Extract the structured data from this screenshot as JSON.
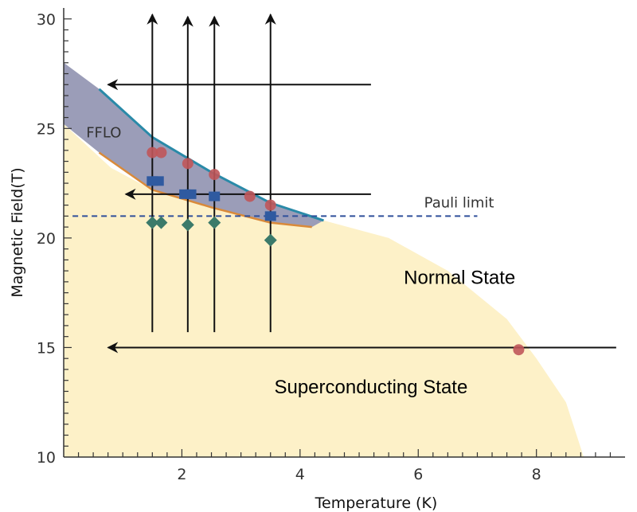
{
  "chart_data": {
    "type": "scatter",
    "title": "",
    "xlabel": "Temperature (K)",
    "ylabel": "Magnetic Field(T)",
    "xlim": [
      0,
      9.5
    ],
    "ylim": [
      10,
      30.5
    ],
    "x_ticks": [
      2,
      4,
      6,
      8
    ],
    "y_ticks": [
      10,
      15,
      20,
      25,
      30
    ],
    "x_tick_labels": [
      "2",
      "4",
      "6",
      "8"
    ],
    "y_tick_labels": [
      "10",
      "15",
      "20",
      "25",
      "30"
    ],
    "grid": false,
    "legend": "none",
    "regions": [
      {
        "label": "Superconducting State",
        "color": "#fdf1c8"
      },
      {
        "label": "FFLO",
        "color": "#9b9db8"
      }
    ],
    "boundaries": {
      "superconducting_upper": [
        [
          0,
          25.2
        ],
        [
          0.8,
          23.2
        ],
        [
          1.5,
          22.2
        ],
        [
          2.5,
          21.4
        ],
        [
          3.5,
          21.0
        ],
        [
          4.4,
          20.8
        ],
        [
          5.5,
          20.0
        ],
        [
          6.5,
          18.5
        ],
        [
          7.5,
          16.3
        ],
        [
          8.0,
          14.5
        ],
        [
          8.5,
          12.5
        ],
        [
          8.8,
          10.0
        ]
      ],
      "fflo_upper": [
        [
          0,
          28.0
        ],
        [
          0.6,
          26.8
        ],
        [
          1.5,
          24.6
        ],
        [
          2.5,
          23.0
        ],
        [
          3.5,
          21.6
        ],
        [
          4.4,
          20.8
        ]
      ],
      "fflo_lower": [
        [
          0.6,
          23.9
        ],
        [
          1.5,
          22.2
        ],
        [
          2.5,
          21.4
        ],
        [
          3.5,
          20.7
        ],
        [
          4.2,
          20.5
        ]
      ]
    },
    "pauli_limit": {
      "label": "Pauli limit",
      "y": 21.0,
      "x_range": [
        0.15,
        7.0
      ]
    },
    "series": [
      {
        "marker": "circle",
        "color": "#c0565a",
        "points": [
          [
            1.5,
            23.9
          ],
          [
            1.65,
            23.9
          ],
          [
            2.1,
            23.4
          ],
          [
            2.55,
            22.9
          ],
          [
            3.15,
            21.9
          ],
          [
            3.5,
            21.5
          ],
          [
            7.7,
            14.9
          ]
        ]
      },
      {
        "marker": "square",
        "color": "#2f5aa0",
        "points": [
          [
            1.5,
            22.6
          ],
          [
            1.6,
            22.6
          ],
          [
            2.05,
            22.0
          ],
          [
            2.15,
            22.0
          ],
          [
            2.55,
            21.9
          ],
          [
            3.5,
            21.0
          ]
        ]
      },
      {
        "marker": "diamond",
        "color": "#3b7a6a",
        "points": [
          [
            1.5,
            20.7
          ],
          [
            1.65,
            20.7
          ],
          [
            2.1,
            20.6
          ],
          [
            2.55,
            20.7
          ],
          [
            3.5,
            19.9
          ]
        ]
      }
    ],
    "vertical_arrows": [
      {
        "x": 1.5,
        "from": 15.7,
        "to": 30.2
      },
      {
        "x": 2.1,
        "from": 15.7,
        "to": 30.1
      },
      {
        "x": 2.55,
        "from": 15.7,
        "to": 30.1
      },
      {
        "x": 3.5,
        "from": 15.7,
        "to": 30.2
      }
    ],
    "horizontal_arrows": [
      {
        "y": 27.0,
        "from": 5.2,
        "to": 0.75
      },
      {
        "y": 22.0,
        "from": 5.2,
        "to": 1.05
      },
      {
        "y": 15.0,
        "from": 9.35,
        "to": 0.75
      }
    ],
    "annotations": [
      {
        "id": "fflo",
        "text": "FFLO",
        "x": 0.38,
        "y": 24.6,
        "style": "small"
      },
      {
        "id": "pauli",
        "text": "Pauli limit",
        "x": 6.1,
        "y": 21.4,
        "style": "small"
      },
      {
        "id": "normal",
        "text": "Normal State",
        "x": 6.7,
        "y": 17.9,
        "style": "big"
      },
      {
        "id": "superconducting",
        "text": "Superconducting State",
        "x": 5.2,
        "y": 12.9,
        "style": "big"
      }
    ]
  }
}
